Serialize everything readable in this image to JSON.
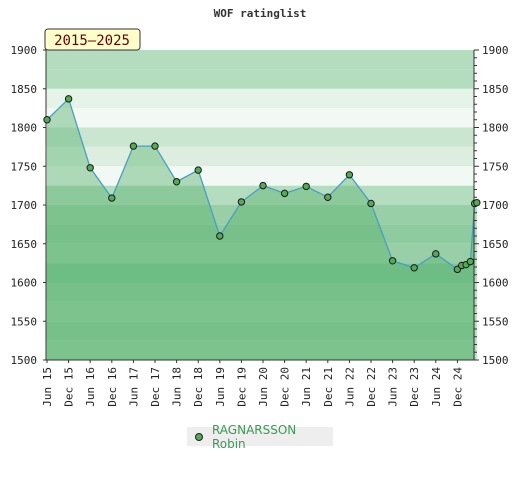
{
  "chart_data": {
    "type": "area",
    "title": "WOF ratinglist",
    "period_badge": "2015–2025",
    "ylim": [
      1500,
      1900
    ],
    "yticks": [
      1500,
      1550,
      1600,
      1650,
      1700,
      1750,
      1800,
      1850,
      1900
    ],
    "xticks": [
      "Jun 15",
      "Dec 15",
      "Jun 16",
      "Dec 16",
      "Jun 17",
      "Dec 17",
      "Jun 18",
      "Dec 18",
      "Jun 19",
      "Dec 19",
      "Jun 20",
      "Dec 20",
      "Jun 21",
      "Dec 21",
      "Jun 22",
      "Dec 22",
      "Jun 23",
      "Dec 23",
      "Jun 24",
      "Dec 24"
    ],
    "legend": "bottom-center",
    "series": [
      {
        "name": "RAGNARSSON Robin",
        "color": "#55aa55",
        "points": [
          {
            "x": 0,
            "y": 1810
          },
          {
            "x": 1,
            "y": 1837
          },
          {
            "x": 2,
            "y": 1748
          },
          {
            "x": 3,
            "y": 1709
          },
          {
            "x": 4,
            "y": 1776
          },
          {
            "x": 5,
            "y": 1776
          },
          {
            "x": 6,
            "y": 1730
          },
          {
            "x": 7,
            "y": 1745
          },
          {
            "x": 8,
            "y": 1660
          },
          {
            "x": 9,
            "y": 1704
          },
          {
            "x": 10,
            "y": 1725
          },
          {
            "x": 11,
            "y": 1715
          },
          {
            "x": 12,
            "y": 1724
          },
          {
            "x": 13,
            "y": 1710
          },
          {
            "x": 14,
            "y": 1739
          },
          {
            "x": 15,
            "y": 1702
          },
          {
            "x": 16,
            "y": 1628
          },
          {
            "x": 17,
            "y": 1619
          },
          {
            "x": 18,
            "y": 1637
          },
          {
            "x": 19,
            "y": 1617
          },
          {
            "x": 19.2,
            "y": 1622
          },
          {
            "x": 19.4,
            "y": 1623
          },
          {
            "x": 19.6,
            "y": 1627
          },
          {
            "x": 19.8,
            "y": 1702
          },
          {
            "x": 19.9,
            "y": 1703
          }
        ]
      }
    ]
  }
}
